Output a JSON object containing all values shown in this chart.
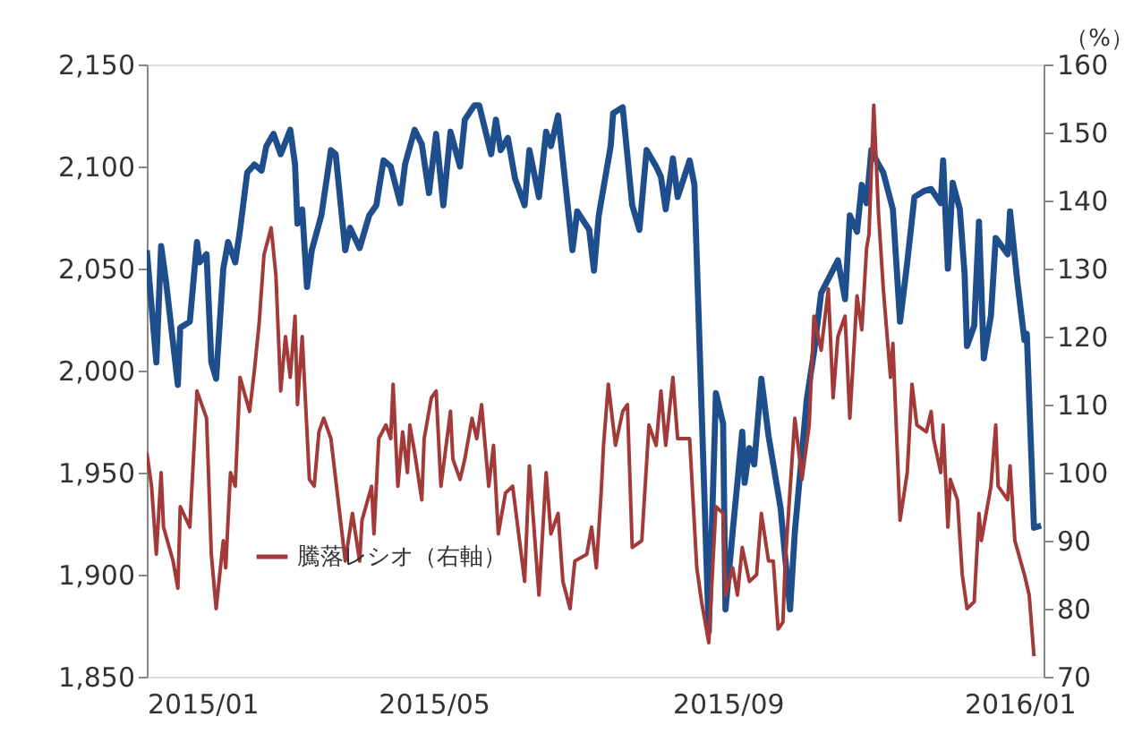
{
  "chart_data": {
    "type": "line",
    "ylim": [
      1850,
      2150
    ],
    "yticks": [
      {
        "value": 1850,
        "label": "1,850"
      },
      {
        "value": 1900,
        "label": "1,900"
      },
      {
        "value": 1950,
        "label": "1,950"
      },
      {
        "value": 2000,
        "label": "2,000"
      },
      {
        "value": 2050,
        "label": "2,050"
      },
      {
        "value": 2100,
        "label": "2,100"
      },
      {
        "value": 2150,
        "label": "2,150"
      }
    ],
    "y2lim": [
      70,
      160
    ],
    "y2ticks": [
      70,
      80,
      90,
      100,
      110,
      120,
      130,
      140,
      150,
      160
    ],
    "y2label": "（%）",
    "xlim": [
      "2015-01-01",
      "2016-01-11"
    ],
    "xticks": [
      {
        "value": "2015-01-01",
        "label": "2015/01"
      },
      {
        "value": "2015-05-01",
        "label": "2015/05"
      },
      {
        "value": "2015-09-01",
        "label": "2015/09"
      },
      {
        "value": "2016-01-01",
        "label": "2016/01"
      }
    ],
    "grid": false,
    "legend": "bottom left",
    "marker": "none",
    "line_style": "solid",
    "series": [
      {
        "color": "#1f4e8c",
        "x": [
          "2015-01-01",
          "2015-01-05",
          "2015-01-07",
          "2015-01-09",
          "2015-01-14",
          "2015-01-15",
          "2015-01-19",
          "2015-01-22",
          "2015-01-23",
          "2015-01-26",
          "2015-01-28",
          "2015-01-30",
          "2015-02-02",
          "2015-02-04",
          "2015-02-07",
          "2015-02-09",
          "2015-02-12",
          "2015-02-15",
          "2015-02-18",
          "2015-02-20",
          "2015-02-23",
          "2015-02-26",
          "2015-03-02",
          "2015-03-04",
          "2015-03-05",
          "2015-03-07",
          "2015-03-09",
          "2015-03-11",
          "2015-03-15",
          "2015-03-19",
          "2015-03-21",
          "2015-03-25",
          "2015-03-27",
          "2015-03-31",
          "2015-04-04",
          "2015-04-07",
          "2015-04-10",
          "2015-04-13",
          "2015-04-17",
          "2015-04-19",
          "2015-04-23",
          "2015-04-26",
          "2015-04-29",
          "2015-05-02",
          "2015-05-05",
          "2015-05-08",
          "2015-05-12",
          "2015-05-14",
          "2015-05-18",
          "2015-05-20",
          "2015-05-25",
          "2015-05-27",
          "2015-05-29",
          "2015-06-01",
          "2015-06-04",
          "2015-06-08",
          "2015-06-10",
          "2015-06-14",
          "2015-06-17",
          "2015-06-19",
          "2015-06-22",
          "2015-06-24",
          "2015-06-28",
          "2015-06-30",
          "2015-07-05",
          "2015-07-07",
          "2015-07-09",
          "2015-07-14",
          "2015-07-15",
          "2015-07-19",
          "2015-07-23",
          "2015-07-26",
          "2015-07-29",
          "2015-08-02",
          "2015-08-04",
          "2015-08-06",
          "2015-08-09",
          "2015-08-11",
          "2015-08-16",
          "2015-08-18",
          "2015-08-24",
          "2015-08-27",
          "2015-08-30",
          "2015-08-31",
          "2015-09-03",
          "2015-09-07",
          "2015-09-08",
          "2015-09-10",
          "2015-09-12",
          "2015-09-15",
          "2015-09-18",
          "2015-09-23",
          "2015-09-27",
          "2015-09-29",
          "2015-10-04",
          "2015-10-07",
          "2015-10-10",
          "2015-10-17",
          "2015-10-20",
          "2015-10-22",
          "2015-10-25",
          "2015-10-27",
          "2015-10-29",
          "2015-10-31",
          "2015-11-03",
          "2015-11-05",
          "2015-11-09",
          "2015-11-12",
          "2015-11-15",
          "2015-11-18",
          "2015-11-22",
          "2015-11-25",
          "2015-11-29",
          "2015-11-30",
          "2015-12-02",
          "2015-12-04",
          "2015-12-07",
          "2015-12-09",
          "2015-12-10",
          "2015-12-13",
          "2015-12-15",
          "2015-12-17",
          "2015-12-20",
          "2015-12-22",
          "2015-12-27",
          "2015-12-28",
          "2015-12-31",
          "2016-01-03",
          "2016-01-04",
          "2016-01-07",
          "2016-01-10"
        ],
        "values": [
          2059,
          2004,
          2061,
          2044,
          1993,
          2021,
          2024,
          2063,
          2053,
          2057,
          2004,
          1996,
          2050,
          2063,
          2053,
          2069,
          2097,
          2101,
          2098,
          2110,
          2116,
          2106,
          2118,
          2101,
          2072,
          2079,
          2041,
          2059,
          2076,
          2108,
          2106,
          2059,
          2070,
          2060,
          2076,
          2081,
          2103,
          2100,
          2082,
          2101,
          2118,
          2111,
          2087,
          2116,
          2081,
          2117,
          2100,
          2123,
          2130,
          2130,
          2106,
          2123,
          2108,
          2114,
          2094,
          2081,
          2108,
          2085,
          2117,
          2110,
          2125,
          2103,
          2059,
          2078,
          2069,
          2049,
          2076,
          2110,
          2126,
          2129,
          2081,
          2069,
          2108,
          2100,
          2095,
          2079,
          2104,
          2085,
          2103,
          2091,
          1872,
          1989,
          1974,
          1883,
          1921,
          1970,
          1945,
          1962,
          1954,
          1996,
          1968,
          1933,
          1883,
          1921,
          1986,
          2009,
          2038,
          2054,
          2035,
          2076,
          2068,
          2091,
          2082,
          2108,
          2101,
          2097,
          2079,
          2024,
          2053,
          2085,
          2088,
          2089,
          2082,
          2103,
          2050,
          2092,
          2079,
          2047,
          2012,
          2022,
          2073,
          2006,
          2027,
          2065,
          2057,
          2078,
          2044,
          2015,
          2018,
          1923,
          1924
        ]
      },
      {
        "name": "騰落レシオ（右軸）",
        "color": "#a33a3a",
        "axis": "y2",
        "x": [
          "2015-01-01",
          "2015-01-03",
          "2015-01-05",
          "2015-01-07",
          "2015-01-08",
          "2015-01-12",
          "2015-01-14",
          "2015-01-15",
          "2015-01-19",
          "2015-01-22",
          "2015-01-26",
          "2015-01-28",
          "2015-01-30",
          "2015-02-02",
          "2015-02-03",
          "2015-02-05",
          "2015-02-07",
          "2015-02-09",
          "2015-02-13",
          "2015-02-15",
          "2015-02-17",
          "2015-02-19",
          "2015-02-22",
          "2015-02-24",
          "2015-02-26",
          "2015-02-28",
          "2015-03-02",
          "2015-03-04",
          "2015-03-05",
          "2015-03-07",
          "2015-03-10",
          "2015-03-12",
          "2015-03-14",
          "2015-03-16",
          "2015-03-19",
          "2015-03-20",
          "2015-03-25",
          "2015-03-28",
          "2015-03-31",
          "2015-04-01",
          "2015-04-05",
          "2015-04-06",
          "2015-04-08",
          "2015-04-11",
          "2015-04-13",
          "2015-04-14",
          "2015-04-16",
          "2015-04-18",
          "2015-04-20",
          "2015-04-21",
          "2015-04-23",
          "2015-04-26",
          "2015-04-27",
          "2015-04-30",
          "2015-05-02",
          "2015-05-04",
          "2015-05-08",
          "2015-05-09",
          "2015-05-12",
          "2015-05-14",
          "2015-05-17",
          "2015-05-19",
          "2015-05-21",
          "2015-05-24",
          "2015-05-26",
          "2015-05-28",
          "2015-05-31",
          "2015-06-03",
          "2015-06-08",
          "2015-06-10",
          "2015-06-14",
          "2015-06-17",
          "2015-06-19",
          "2015-06-22",
          "2015-06-24",
          "2015-06-27",
          "2015-06-29",
          "2015-07-04",
          "2015-07-06",
          "2015-07-08",
          "2015-07-10",
          "2015-07-11",
          "2015-07-13",
          "2015-07-16",
          "2015-07-19",
          "2015-07-21",
          "2015-07-23",
          "2015-07-27",
          "2015-07-30",
          "2015-08-02",
          "2015-08-04",
          "2015-08-06",
          "2015-08-09",
          "2015-08-11",
          "2015-08-16",
          "2015-08-19",
          "2015-08-21",
          "2015-08-24",
          "2015-08-27",
          "2015-08-30",
          "2015-08-31",
          "2015-09-03",
          "2015-09-05",
          "2015-09-07",
          "2015-09-10",
          "2015-09-13",
          "2015-09-15",
          "2015-09-18",
          "2015-09-20",
          "2015-09-22",
          "2015-09-24",
          "2015-09-25",
          "2015-09-29",
          "2015-10-02",
          "2015-10-05",
          "2015-10-07",
          "2015-10-10",
          "2015-10-13",
          "2015-10-15",
          "2015-10-17",
          "2015-10-20",
          "2015-10-22",
          "2015-10-25",
          "2015-10-27",
          "2015-10-29",
          "2015-10-30",
          "2015-11-01",
          "2015-11-03",
          "2015-11-05",
          "2015-11-08",
          "2015-11-09",
          "2015-11-12",
          "2015-11-15",
          "2015-11-17",
          "2015-11-19",
          "2015-11-23",
          "2015-11-25",
          "2015-11-26",
          "2015-11-29",
          "2015-11-30",
          "2015-12-02",
          "2015-12-03",
          "2015-12-06",
          "2015-12-08",
          "2015-12-10",
          "2015-12-13",
          "2015-12-15",
          "2015-12-16",
          "2015-12-20",
          "2015-12-22",
          "2015-12-23",
          "2015-12-27",
          "2015-12-28",
          "2015-12-30",
          "2016-01-03",
          "2016-01-05",
          "2016-01-07"
        ],
        "values": [
          103,
          98,
          88,
          100,
          92,
          87,
          83,
          95,
          92,
          112,
          108,
          88,
          80,
          90,
          86,
          100,
          98,
          114,
          109,
          115,
          122,
          132,
          136,
          129,
          112,
          120,
          114,
          123,
          110,
          120,
          99,
          98,
          106,
          108,
          105,
          102,
          87,
          94,
          87,
          93,
          98,
          91,
          105,
          107,
          105,
          113,
          98,
          106,
          100,
          107,
          103,
          96,
          105,
          111,
          112,
          98,
          109,
          102,
          99,
          102,
          108,
          105,
          110,
          98,
          104,
          91,
          97,
          98,
          84,
          101,
          82,
          100,
          91,
          94,
          84,
          80,
          87,
          88,
          92,
          86,
          97,
          104,
          113,
          104,
          109,
          110,
          89,
          90,
          107,
          104,
          112,
          104,
          114,
          105,
          105,
          86,
          81,
          75,
          95,
          94,
          82,
          86,
          82,
          89,
          84,
          85,
          94,
          87,
          87,
          77,
          78,
          87,
          108,
          99,
          107,
          123,
          118,
          127,
          111,
          120,
          123,
          108,
          126,
          121,
          133,
          135,
          154,
          138,
          127,
          114,
          119,
          93,
          100,
          113,
          107,
          106,
          109,
          105,
          100,
          107,
          92,
          99,
          96,
          85,
          80,
          81,
          94,
          90,
          98,
          107,
          98,
          96,
          101,
          90,
          85,
          82,
          73
        ]
      }
    ]
  }
}
